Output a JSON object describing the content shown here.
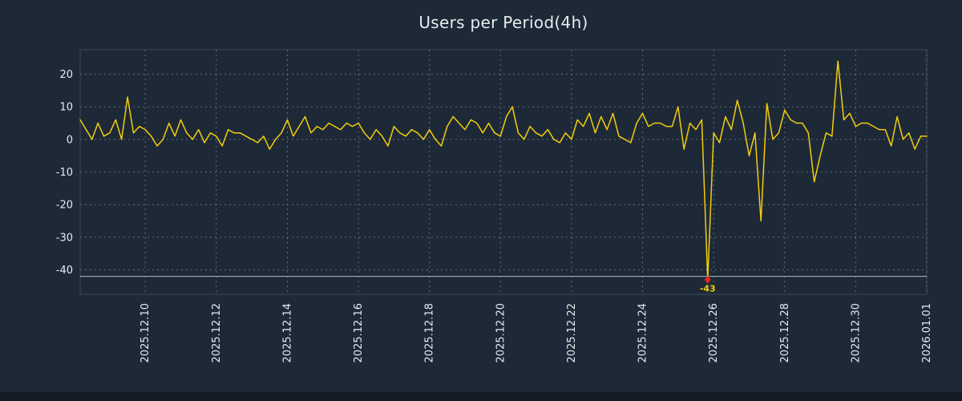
{
  "title": "Users per Period(4h)",
  "colors": {
    "background": "#1e2937",
    "line": "#f2cd0d",
    "grid": "#9aa3ae",
    "text": "#e8ebee",
    "marker": "#e8241e",
    "threshold": "#ccd2d9",
    "annotation": "#f2cd0d",
    "frame": "#5d6878",
    "footer_strip": "#121a26"
  },
  "chart_data": {
    "type": "line",
    "title": "Users per Period(4h)",
    "xlabel": "",
    "ylabel": "",
    "grid": true,
    "legend": false,
    "ylim": [
      -47.5,
      27.5
    ],
    "y_ticks": [
      20,
      10,
      0,
      -10,
      -20,
      -30,
      -40
    ],
    "threshold_line": -42,
    "min_annotation": {
      "label": "-43",
      "value": -43,
      "index": 106
    },
    "x_ticks": [
      {
        "label": "2025.12.10",
        "index": 11
      },
      {
        "label": "2025.12.12",
        "index": 23
      },
      {
        "label": "2025.12.14",
        "index": 35
      },
      {
        "label": "2025.12.16",
        "index": 47
      },
      {
        "label": "2025.12.18",
        "index": 59
      },
      {
        "label": "2025.12.20",
        "index": 71
      },
      {
        "label": "2025.12.22",
        "index": 83
      },
      {
        "label": "2025.12.24",
        "index": 95
      },
      {
        "label": "2025.12.26",
        "index": 107
      },
      {
        "label": "2025.12.28",
        "index": 119
      },
      {
        "label": "2025.12.30",
        "index": 131
      },
      {
        "label": "2026.01.01",
        "index": 143
      }
    ],
    "series": [
      {
        "name": "Users",
        "start": "2025-12-08 04:00",
        "end": "2026-01-01 00:00",
        "interval_hours": 4,
        "values": [
          6,
          3,
          0,
          5,
          1,
          2,
          6,
          0,
          13,
          2,
          4,
          3,
          1,
          -2,
          0,
          5,
          1,
          6,
          2,
          0,
          3,
          -1,
          2,
          1,
          -2,
          3,
          2,
          2,
          1,
          0,
          -1,
          1,
          -3,
          0,
          2,
          6,
          1,
          4,
          7,
          2,
          4,
          3,
          5,
          4,
          3,
          5,
          4,
          5,
          2,
          0,
          3,
          1,
          -2,
          4,
          2,
          1,
          3,
          2,
          0,
          3,
          0,
          -2,
          4,
          7,
          5,
          3,
          6,
          5,
          2,
          5,
          2,
          1,
          7,
          10,
          2,
          0,
          4,
          2,
          1,
          3,
          0,
          -1,
          2,
          0,
          6,
          4,
          8,
          2,
          7,
          3,
          8,
          1,
          0,
          -1,
          5,
          8,
          4,
          5,
          5,
          4,
          4,
          10,
          -3,
          5,
          3,
          6,
          -43,
          2,
          -1,
          7,
          3,
          12,
          5,
          -5,
          2,
          -25,
          11,
          0,
          2,
          9,
          6,
          5,
          5,
          2,
          -13,
          -5,
          2,
          1,
          24,
          6,
          8,
          4,
          5,
          5,
          4,
          3,
          3,
          -2,
          7,
          0,
          2,
          -3,
          1,
          1
        ]
      }
    ]
  }
}
